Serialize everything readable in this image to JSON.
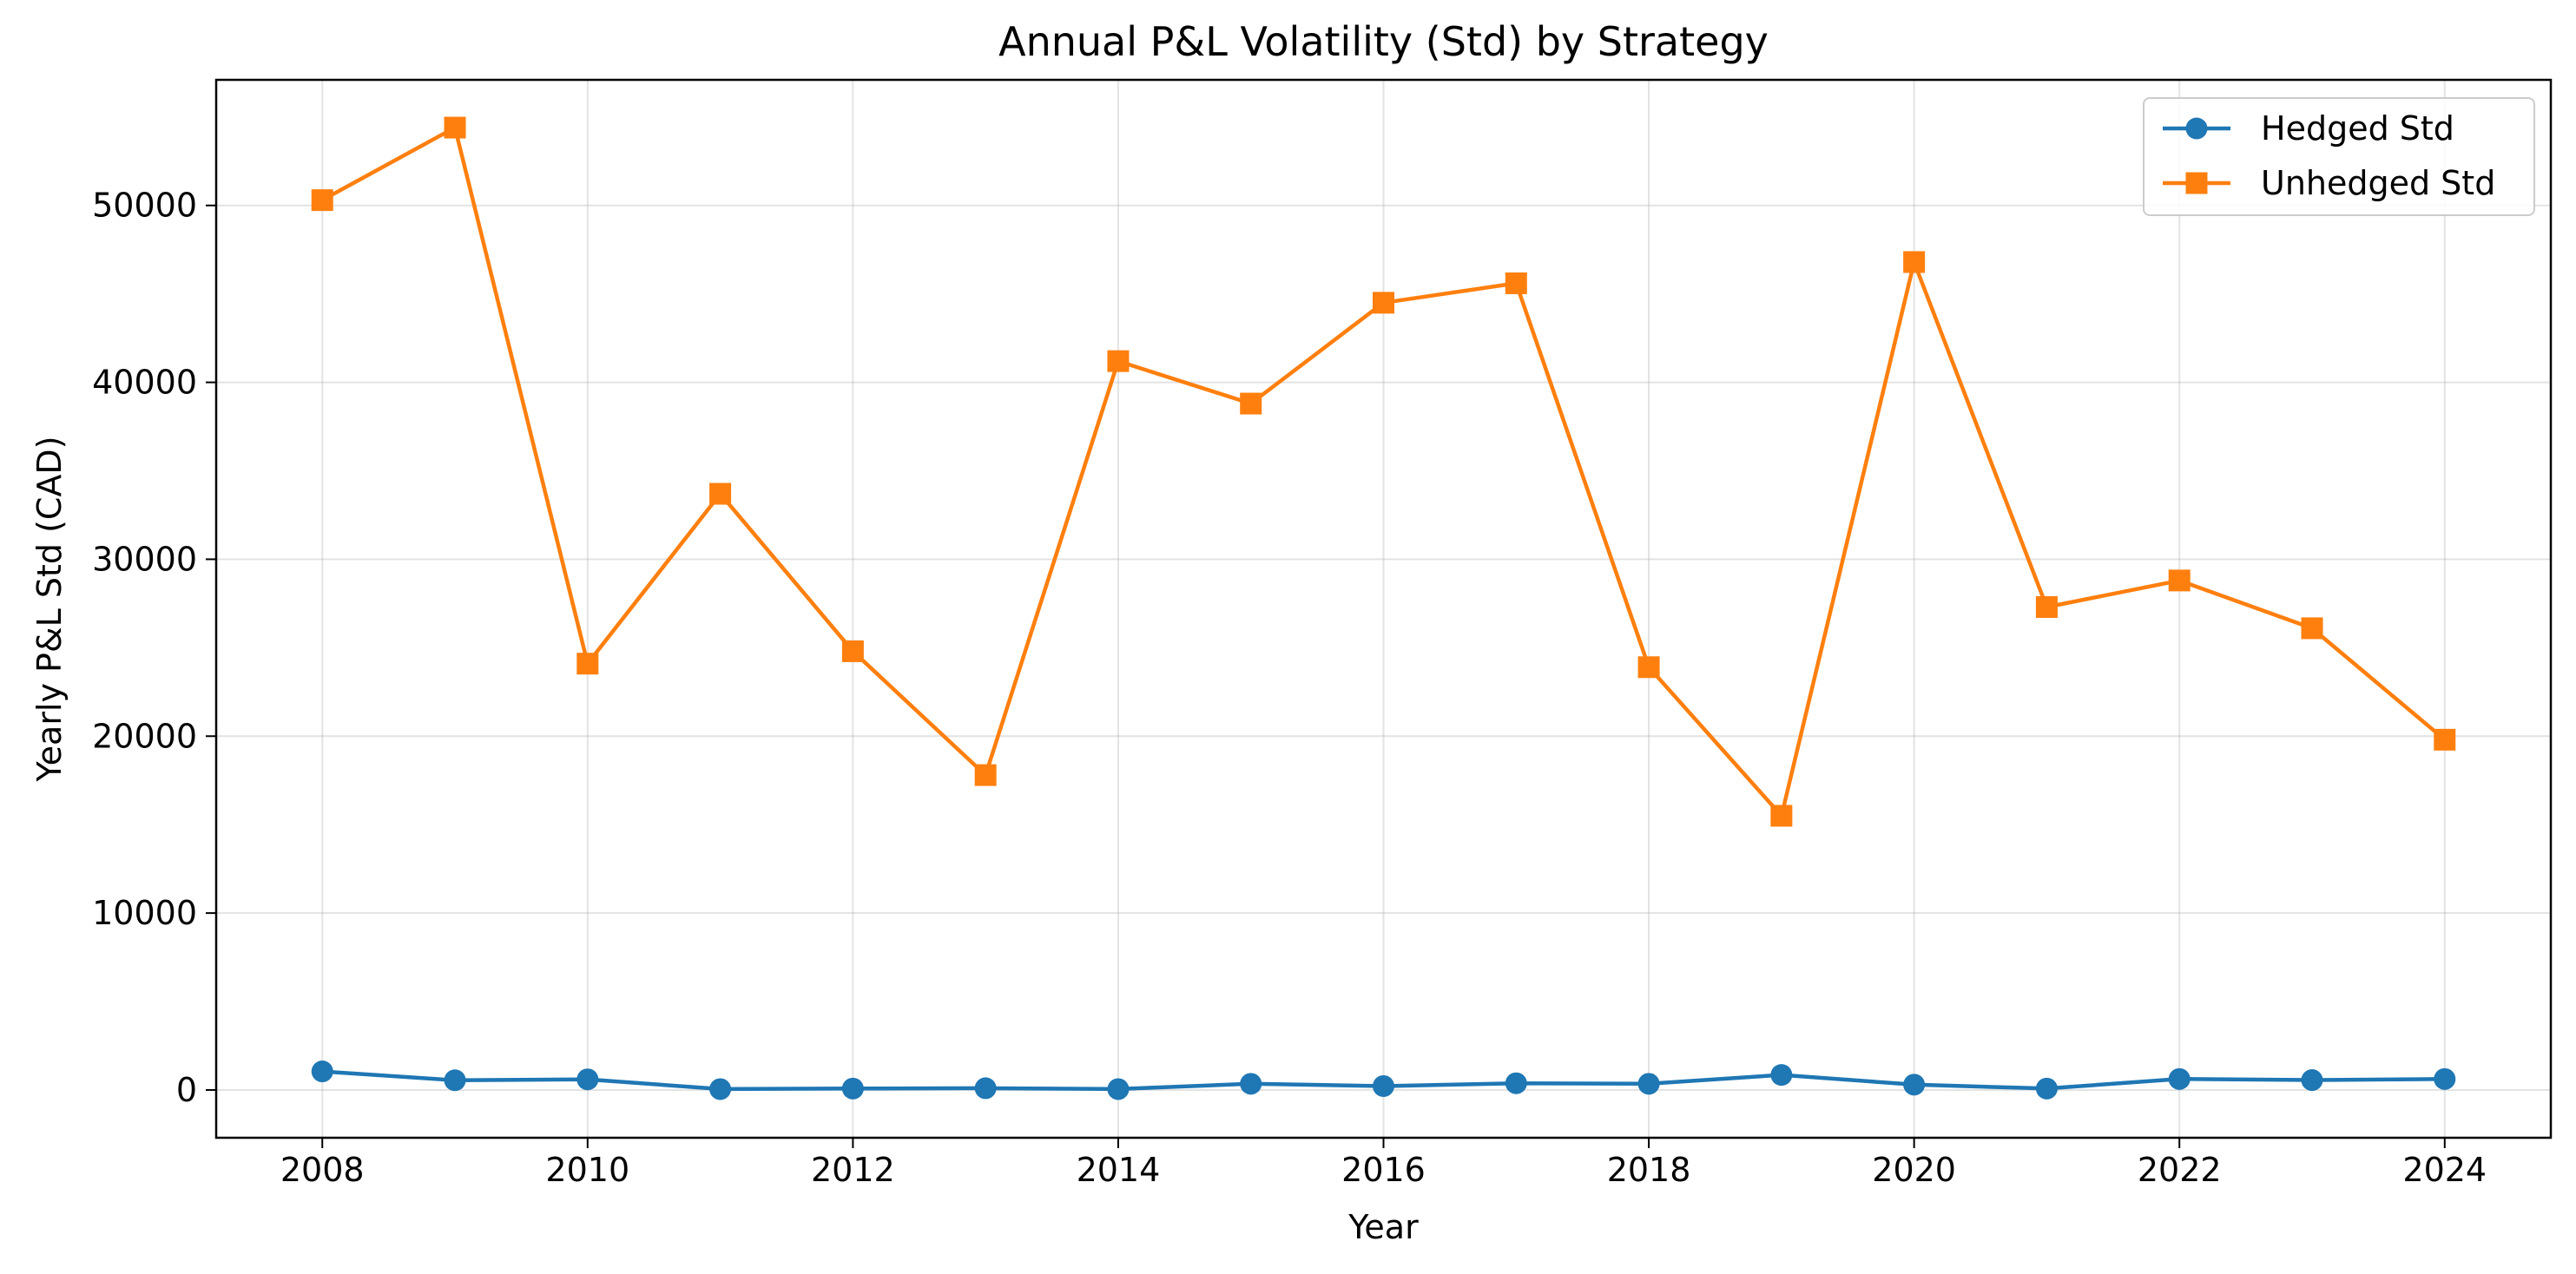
{
  "chart_data": {
    "type": "line",
    "title": "Annual P&L Volatility (Std) by Strategy",
    "xlabel": "Year",
    "ylabel": "Yearly P&L Std (CAD)",
    "x": [
      2008,
      2009,
      2010,
      2011,
      2012,
      2013,
      2014,
      2015,
      2016,
      2017,
      2018,
      2019,
      2020,
      2021,
      2022,
      2023,
      2024
    ],
    "series": [
      {
        "name": "Hedged Std",
        "color": "#1f77b4",
        "marker": "circle",
        "values": [
          1050,
          550,
          600,
          50,
          80,
          100,
          50,
          350,
          220,
          380,
          350,
          850,
          300,
          80,
          620,
          560,
          620
        ]
      },
      {
        "name": "Unhedged Std",
        "color": "#ff7f0e",
        "marker": "square",
        "values": [
          50300,
          54400,
          24100,
          33700,
          24800,
          17800,
          41200,
          38800,
          44500,
          45600,
          23900,
          15500,
          46800,
          27300,
          28800,
          26100,
          19800
        ]
      }
    ],
    "xticks": [
      "2008",
      "2010",
      "2012",
      "2014",
      "2016",
      "2018",
      "2020",
      "2022",
      "2024"
    ],
    "yticks": [
      "0",
      "10000",
      "20000",
      "30000",
      "40000",
      "50000"
    ],
    "xlim": [
      2007.2,
      2024.8
    ],
    "ylim": [
      -2700,
      57100
    ],
    "grid": true,
    "legend_position": "top-right"
  }
}
